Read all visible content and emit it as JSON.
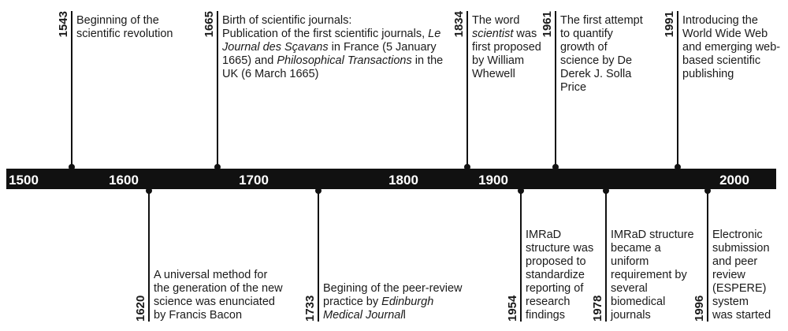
{
  "scale": [
    "1500",
    "1600",
    "1700",
    "1800",
    "1900",
    "2000"
  ],
  "events": [
    {
      "year": "1543",
      "position": "above",
      "lines": [
        [
          "Beginning of the"
        ],
        [
          "scientific revolution"
        ]
      ]
    },
    {
      "year": "1665",
      "position": "above",
      "lines": [
        [
          "Birth of scientific journals:"
        ],
        [
          "Publication of the first scientific journals, ",
          {
            "text": "Le",
            "italic": true
          }
        ],
        [
          {
            "text": "Journal des Sçavans",
            "italic": true
          },
          " in France (5 January"
        ],
        [
          "1665) and ",
          {
            "text": "Philosophical Transactions",
            "italic": true
          },
          " in the"
        ],
        [
          "UK (6 March 1665)"
        ]
      ]
    },
    {
      "year": "1834",
      "position": "above",
      "lines": [
        [
          "The word"
        ],
        [
          {
            "text": "scientist",
            "italic": true
          },
          " was"
        ],
        [
          "first proposed"
        ],
        [
          "by William"
        ],
        [
          "Whewell"
        ]
      ]
    },
    {
      "year": "1961",
      "position": "above",
      "lines": [
        [
          "The first attempt"
        ],
        [
          "to quantify"
        ],
        [
          "growth of"
        ],
        [
          "science by De"
        ],
        [
          "Derek J. Solla"
        ],
        [
          "Price"
        ]
      ]
    },
    {
      "year": "1991",
      "position": "above",
      "lines": [
        [
          "Introducing the"
        ],
        [
          "World Wide Web"
        ],
        [
          "and emerging web-"
        ],
        [
          "based scientific"
        ],
        [
          "publishing"
        ]
      ]
    },
    {
      "year": "1620",
      "position": "below",
      "lines": [
        [
          "A universal method for"
        ],
        [
          "the generation of the new"
        ],
        [
          "science was enunciated"
        ],
        [
          "by Francis Bacon"
        ]
      ]
    },
    {
      "year": "1733",
      "position": "below",
      "lines": [
        [
          "Begining of the peer-review"
        ],
        [
          "practice by ",
          {
            "text": "Edinburgh",
            "italic": true
          }
        ],
        [
          {
            "text": "Medical Journal",
            "italic": true
          },
          "l"
        ]
      ]
    },
    {
      "year": "1954",
      "position": "below",
      "lines": [
        [
          "IMRaD"
        ],
        [
          "structure was"
        ],
        [
          "proposed to"
        ],
        [
          "standardize"
        ],
        [
          "reporting of"
        ],
        [
          "research"
        ],
        [
          "findings"
        ]
      ]
    },
    {
      "year": "1978",
      "position": "below",
      "lines": [
        [
          "IMRaD structure"
        ],
        [
          "became a"
        ],
        [
          "uniform"
        ],
        [
          "requirement by"
        ],
        [
          "several"
        ],
        [
          "biomedical"
        ],
        [
          "journals"
        ]
      ]
    },
    {
      "year": "1996",
      "position": "below",
      "lines": [
        [
          "Electronic"
        ],
        [
          "submission"
        ],
        [
          "and peer"
        ],
        [
          "review"
        ],
        [
          "(ESPERE)"
        ],
        [
          "system"
        ],
        [
          "was started"
        ]
      ]
    }
  ]
}
